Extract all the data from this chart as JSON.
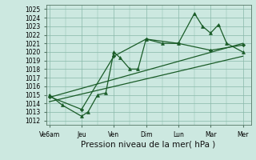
{
  "background_color": "#cce8e0",
  "grid_color": "#88b8a8",
  "line_color": "#1a5c28",
  "marker_color": "#1a5c28",
  "x_labels": [
    "Ve6am",
    "Jeu",
    "Ven",
    "Dim",
    "Lun",
    "Mar",
    "Mer"
  ],
  "x_ticks": [
    0,
    2,
    4,
    6,
    8,
    10,
    12
  ],
  "xlim": [
    -0.2,
    12.5
  ],
  "ylim": [
    1011.5,
    1025.5
  ],
  "yticks": [
    1012,
    1013,
    1014,
    1015,
    1016,
    1017,
    1018,
    1019,
    1020,
    1021,
    1022,
    1023,
    1024,
    1025
  ],
  "xlabel": "Pression niveau de la mer( hPa )",
  "series1_x": [
    0,
    0.8,
    2.0,
    2.4,
    3.0,
    3.5,
    4.0,
    4.4,
    5.0,
    5.5,
    6.0,
    7.0,
    8.0,
    9.0,
    9.5,
    10.0,
    10.5,
    11.0,
    12.0
  ],
  "series1_y": [
    1015.0,
    1013.8,
    1012.5,
    1013.0,
    1015.0,
    1015.2,
    1020.0,
    1019.3,
    1018.0,
    1018.0,
    1021.5,
    1021.0,
    1021.0,
    1024.5,
    1023.0,
    1022.2,
    1023.2,
    1021.0,
    1020.0
  ],
  "series2_x": [
    0,
    2,
    4,
    6,
    8,
    10,
    12
  ],
  "series2_y": [
    1014.8,
    1013.3,
    1019.5,
    1021.5,
    1021.0,
    1020.2,
    1020.8
  ],
  "trend1_x": [
    0,
    12
  ],
  "trend1_y": [
    1014.7,
    1021.0
  ],
  "trend2_x": [
    0,
    12
  ],
  "trend2_y": [
    1014.2,
    1019.5
  ],
  "tick_fontsize": 5.5,
  "xlabel_fontsize": 7.5
}
